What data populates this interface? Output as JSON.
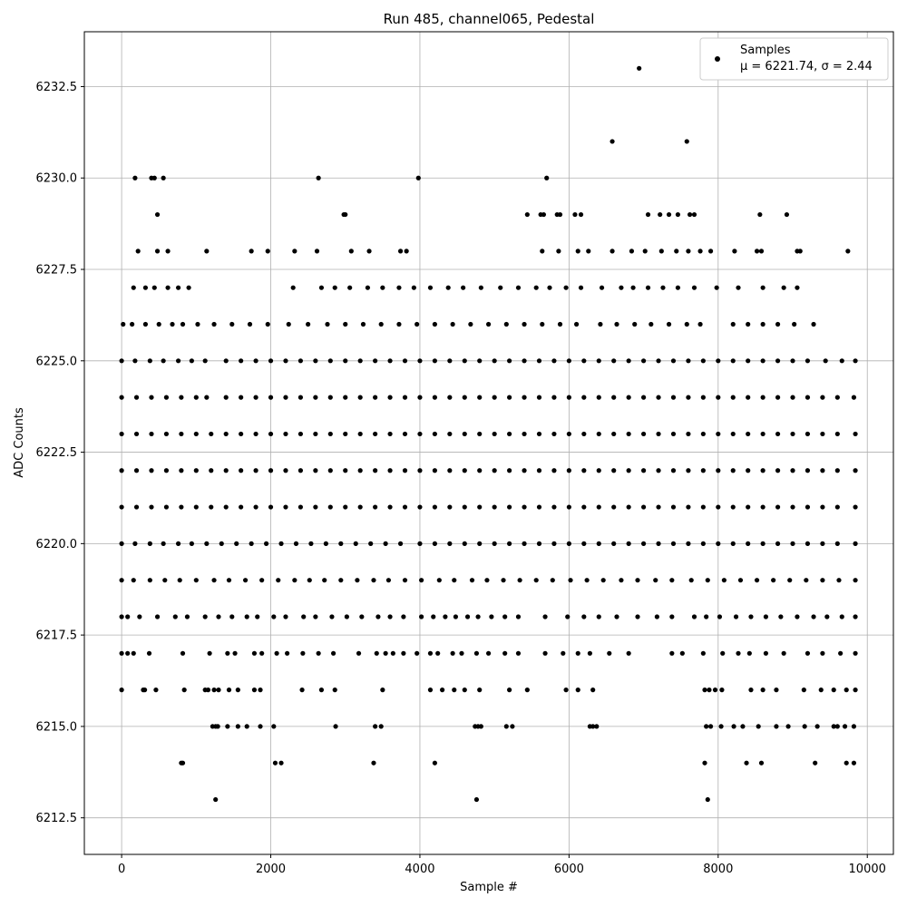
{
  "chart_data": {
    "type": "scatter",
    "title": "Run 485, channel065, Pedestal",
    "xlabel": "Sample #",
    "ylabel": "ADC Counts",
    "xlim": [
      -500,
      10350
    ],
    "ylim": [
      6211.5,
      6234.0
    ],
    "xticks": [
      0,
      2000,
      4000,
      6000,
      8000,
      10000
    ],
    "yticks": [
      6212.5,
      6215.0,
      6217.5,
      6220.0,
      6222.5,
      6225.0,
      6227.5,
      6230.0,
      6232.5
    ],
    "xtick_labels": [
      "0",
      "2000",
      "4000",
      "6000",
      "8000",
      "10000"
    ],
    "ytick_labels": [
      "6212.5",
      "6215.0",
      "6217.5",
      "6220.0",
      "6222.5",
      "6225.0",
      "6227.5",
      "6230.0",
      "6232.5"
    ],
    "grid": true,
    "legend_position": "top-right",
    "series": [
      {
        "name": "Samples",
        "color": "#000000",
        "marker": "dot",
        "x_range": [
          0,
          9840
        ],
        "levels": [
          {
            "y": 6213,
            "x": [
              1260,
              4760,
              7860
            ]
          },
          {
            "y": 6214,
            "x": [
              800,
              820,
              2060,
              2140,
              3380,
              4200,
              7820,
              8380,
              8580,
              9300,
              9720,
              9820
            ]
          },
          {
            "y": 6215,
            "x": [
              1220,
              1260,
              1290,
              1420,
              1560,
              1680,
              1860,
              2040,
              2870,
              3400,
              3480,
              4740,
              4780,
              4820,
              5160,
              5240,
              6280,
              6320,
              6370,
              7840,
              7900,
              8040,
              8210,
              8330,
              8540,
              8780,
              8940,
              9160,
              9330,
              9550,
              9600,
              9700,
              9820
            ]
          },
          {
            "y": 6216,
            "x": [
              0,
              290,
              310,
              460,
              840,
              1120,
              1160,
              1240,
              1300,
              1440,
              1560,
              1780,
              1860,
              2420,
              2680,
              2860,
              3500,
              4140,
              4300,
              4460,
              4600,
              4800,
              5200,
              5440,
              5960,
              6120,
              6320,
              7820,
              7880,
              7960,
              8050,
              8440,
              8600,
              8780,
              9150,
              9380,
              9550,
              9720,
              9840
            ]
          },
          {
            "y": 6217,
            "x": [
              0,
              80,
              160,
              370,
              820,
              1180,
              1420,
              1520,
              1780,
              1880,
              2080,
              2220,
              2430,
              2640,
              2840,
              3180,
              3420,
              3540,
              3640,
              3780,
              3960,
              4140,
              4240,
              4440,
              4560,
              4760,
              4920,
              5140,
              5320,
              5680,
              5920,
              6120,
              6280,
              6540,
              6800,
              7380,
              7520,
              7800,
              8060,
              8270,
              8420,
              8640,
              8880,
              9200,
              9400,
              9640,
              9840
            ]
          },
          {
            "y": 6218,
            "x": [
              0,
              80,
              240,
              480,
              720,
              880,
              1120,
              1300,
              1480,
              1680,
              1820,
              2040,
              2200,
              2440,
              2600,
              2820,
              3020,
              3220,
              3440,
              3600,
              3780,
              4020,
              4180,
              4340,
              4480,
              4640,
              4780,
              4960,
              5140,
              5320,
              5680,
              5980,
              6200,
              6400,
              6640,
              6920,
              7180,
              7380,
              7680,
              7840,
              8020,
              8240,
              8440,
              8640,
              8840,
              9060,
              9280,
              9460,
              9660,
              9840
            ]
          },
          {
            "y": 6219,
            "x": [
              0,
              160,
              380,
              580,
              780,
              1000,
              1240,
              1440,
              1660,
              1880,
              2100,
              2320,
              2520,
              2720,
              2940,
              3160,
              3380,
              3580,
              3800,
              4020,
              4260,
              4460,
              4700,
              4900,
              5120,
              5340,
              5560,
              5780,
              6020,
              6240,
              6460,
              6700,
              6920,
              7160,
              7380,
              7640,
              7860,
              8080,
              8300,
              8520,
              8740,
              8960,
              9180,
              9400,
              9620,
              9840
            ]
          },
          {
            "y": 6220,
            "x": [
              0,
              180,
              380,
              560,
              760,
              940,
              1140,
              1340,
              1540,
              1740,
              1940,
              2140,
              2340,
              2540,
              2740,
              2940,
              3140,
              3340,
              3540,
              3740,
              4000,
              4200,
              4400,
              4600,
              4800,
              5000,
              5200,
              5400,
              5600,
              5800,
              6000,
              6200,
              6400,
              6600,
              6800,
              7000,
              7200,
              7400,
              7600,
              7800,
              8000,
              8200,
              8400,
              8600,
              8800,
              9000,
              9200,
              9400,
              9600,
              9840
            ]
          },
          {
            "y": 6221,
            "x": [
              0,
              200,
              400,
              600,
              800,
              1000,
              1200,
              1400,
              1600,
              1800,
              2000,
              2200,
              2400,
              2600,
              2800,
              3000,
              3200,
              3400,
              3600,
              3800,
              4000,
              4200,
              4400,
              4600,
              4800,
              5000,
              5200,
              5400,
              5600,
              5800,
              6000,
              6200,
              6400,
              6600,
              6800,
              7000,
              7200,
              7400,
              7600,
              7800,
              8000,
              8200,
              8400,
              8600,
              8800,
              9000,
              9200,
              9400,
              9600,
              9840
            ]
          },
          {
            "y": 6222,
            "x": [
              0,
              200,
              400,
              600,
              800,
              1000,
              1200,
              1400,
              1600,
              1800,
              2000,
              2200,
              2400,
              2600,
              2800,
              3000,
              3200,
              3400,
              3600,
              3800,
              4000,
              4200,
              4400,
              4600,
              4800,
              5000,
              5200,
              5400,
              5600,
              5800,
              6000,
              6200,
              6400,
              6600,
              6800,
              7000,
              7200,
              7400,
              7600,
              7800,
              8000,
              8200,
              8400,
              8600,
              8800,
              9000,
              9200,
              9400,
              9600,
              9840
            ]
          },
          {
            "y": 6223,
            "x": [
              0,
              200,
              400,
              600,
              800,
              1000,
              1200,
              1400,
              1600,
              1800,
              2000,
              2200,
              2400,
              2600,
              2800,
              3000,
              3200,
              3400,
              3600,
              3800,
              4000,
              4200,
              4400,
              4600,
              4800,
              5000,
              5200,
              5400,
              5600,
              5800,
              6000,
              6200,
              6400,
              6600,
              6800,
              7000,
              7200,
              7400,
              7600,
              7800,
              8000,
              8200,
              8400,
              8600,
              8800,
              9000,
              9200,
              9400,
              9600,
              9840
            ]
          },
          {
            "y": 6224,
            "x": [
              0,
              200,
              400,
              600,
              800,
              1000,
              1140,
              1400,
              1600,
              1800,
              2000,
              2200,
              2400,
              2600,
              2800,
              3000,
              3200,
              3400,
              3600,
              3800,
              4000,
              4200,
              4400,
              4600,
              4800,
              5000,
              5200,
              5400,
              5600,
              5800,
              6000,
              6200,
              6400,
              6600,
              6800,
              7000,
              7200,
              7400,
              7600,
              7800,
              8000,
              8200,
              8400,
              8600,
              8800,
              9000,
              9200,
              9400,
              9600,
              9820
            ]
          },
          {
            "y": 6225,
            "x": [
              0,
              180,
              380,
              560,
              760,
              940,
              1120,
              1400,
              1600,
              1800,
              2000,
              2200,
              2400,
              2600,
              2800,
              3000,
              3200,
              3400,
              3600,
              3800,
              4000,
              4200,
              4400,
              4600,
              4800,
              5000,
              5200,
              5400,
              5600,
              5800,
              6000,
              6200,
              6400,
              6600,
              6800,
              7000,
              7200,
              7400,
              7600,
              7800,
              8000,
              8200,
              8400,
              8600,
              8800,
              9000,
              9200,
              9440,
              9660,
              9840
            ]
          },
          {
            "y": 6226,
            "x": [
              20,
              140,
              320,
              500,
              680,
              820,
              1020,
              1240,
              1480,
              1720,
              1960,
              2240,
              2500,
              2760,
              3000,
              3240,
              3480,
              3720,
              3960,
              4200,
              4440,
              4680,
              4920,
              5160,
              5400,
              5640,
              5880,
              6100,
              6420,
              6640,
              6880,
              7100,
              7340,
              7580,
              7760,
              8200,
              8400,
              8600,
              8800,
              9020,
              9280
            ]
          },
          {
            "y": 6227,
            "x": [
              160,
              320,
              440,
              620,
              760,
              900,
              2300,
              2680,
              2860,
              3060,
              3300,
              3500,
              3720,
              3920,
              4140,
              4380,
              4580,
              4820,
              5080,
              5320,
              5560,
              5740,
              5960,
              6160,
              6440,
              6700,
              6860,
              7060,
              7260,
              7460,
              7680,
              7980,
              8270,
              8600,
              8880,
              9060
            ]
          },
          {
            "y": 6228,
            "x": [
              220,
              480,
              620,
              1140,
              1740,
              1960,
              2320,
              2620,
              3080,
              3320,
              3740,
              3820,
              5640,
              5860,
              6120,
              6260,
              6580,
              6840,
              7020,
              7240,
              7440,
              7600,
              7760,
              7900,
              8220,
              8520,
              8580,
              9060,
              9100,
              9740
            ]
          },
          {
            "y": 6229,
            "x": [
              480,
              2980,
              3000,
              5440,
              5620,
              5660,
              5840,
              5880,
              6080,
              6160,
              7060,
              7220,
              7340,
              7460,
              7620,
              7680,
              8560,
              8920
            ]
          },
          {
            "y": 6230,
            "x": [
              180,
              400,
              440,
              560,
              2640,
              3980,
              5700
            ]
          },
          {
            "y": 6231,
            "x": [
              6580,
              7580
            ]
          },
          {
            "y": 6233,
            "x": [
              6940
            ]
          }
        ]
      }
    ],
    "legend": {
      "series_label": "Samples",
      "stats_label": "μ = 6221.74, σ = 2.44"
    }
  }
}
